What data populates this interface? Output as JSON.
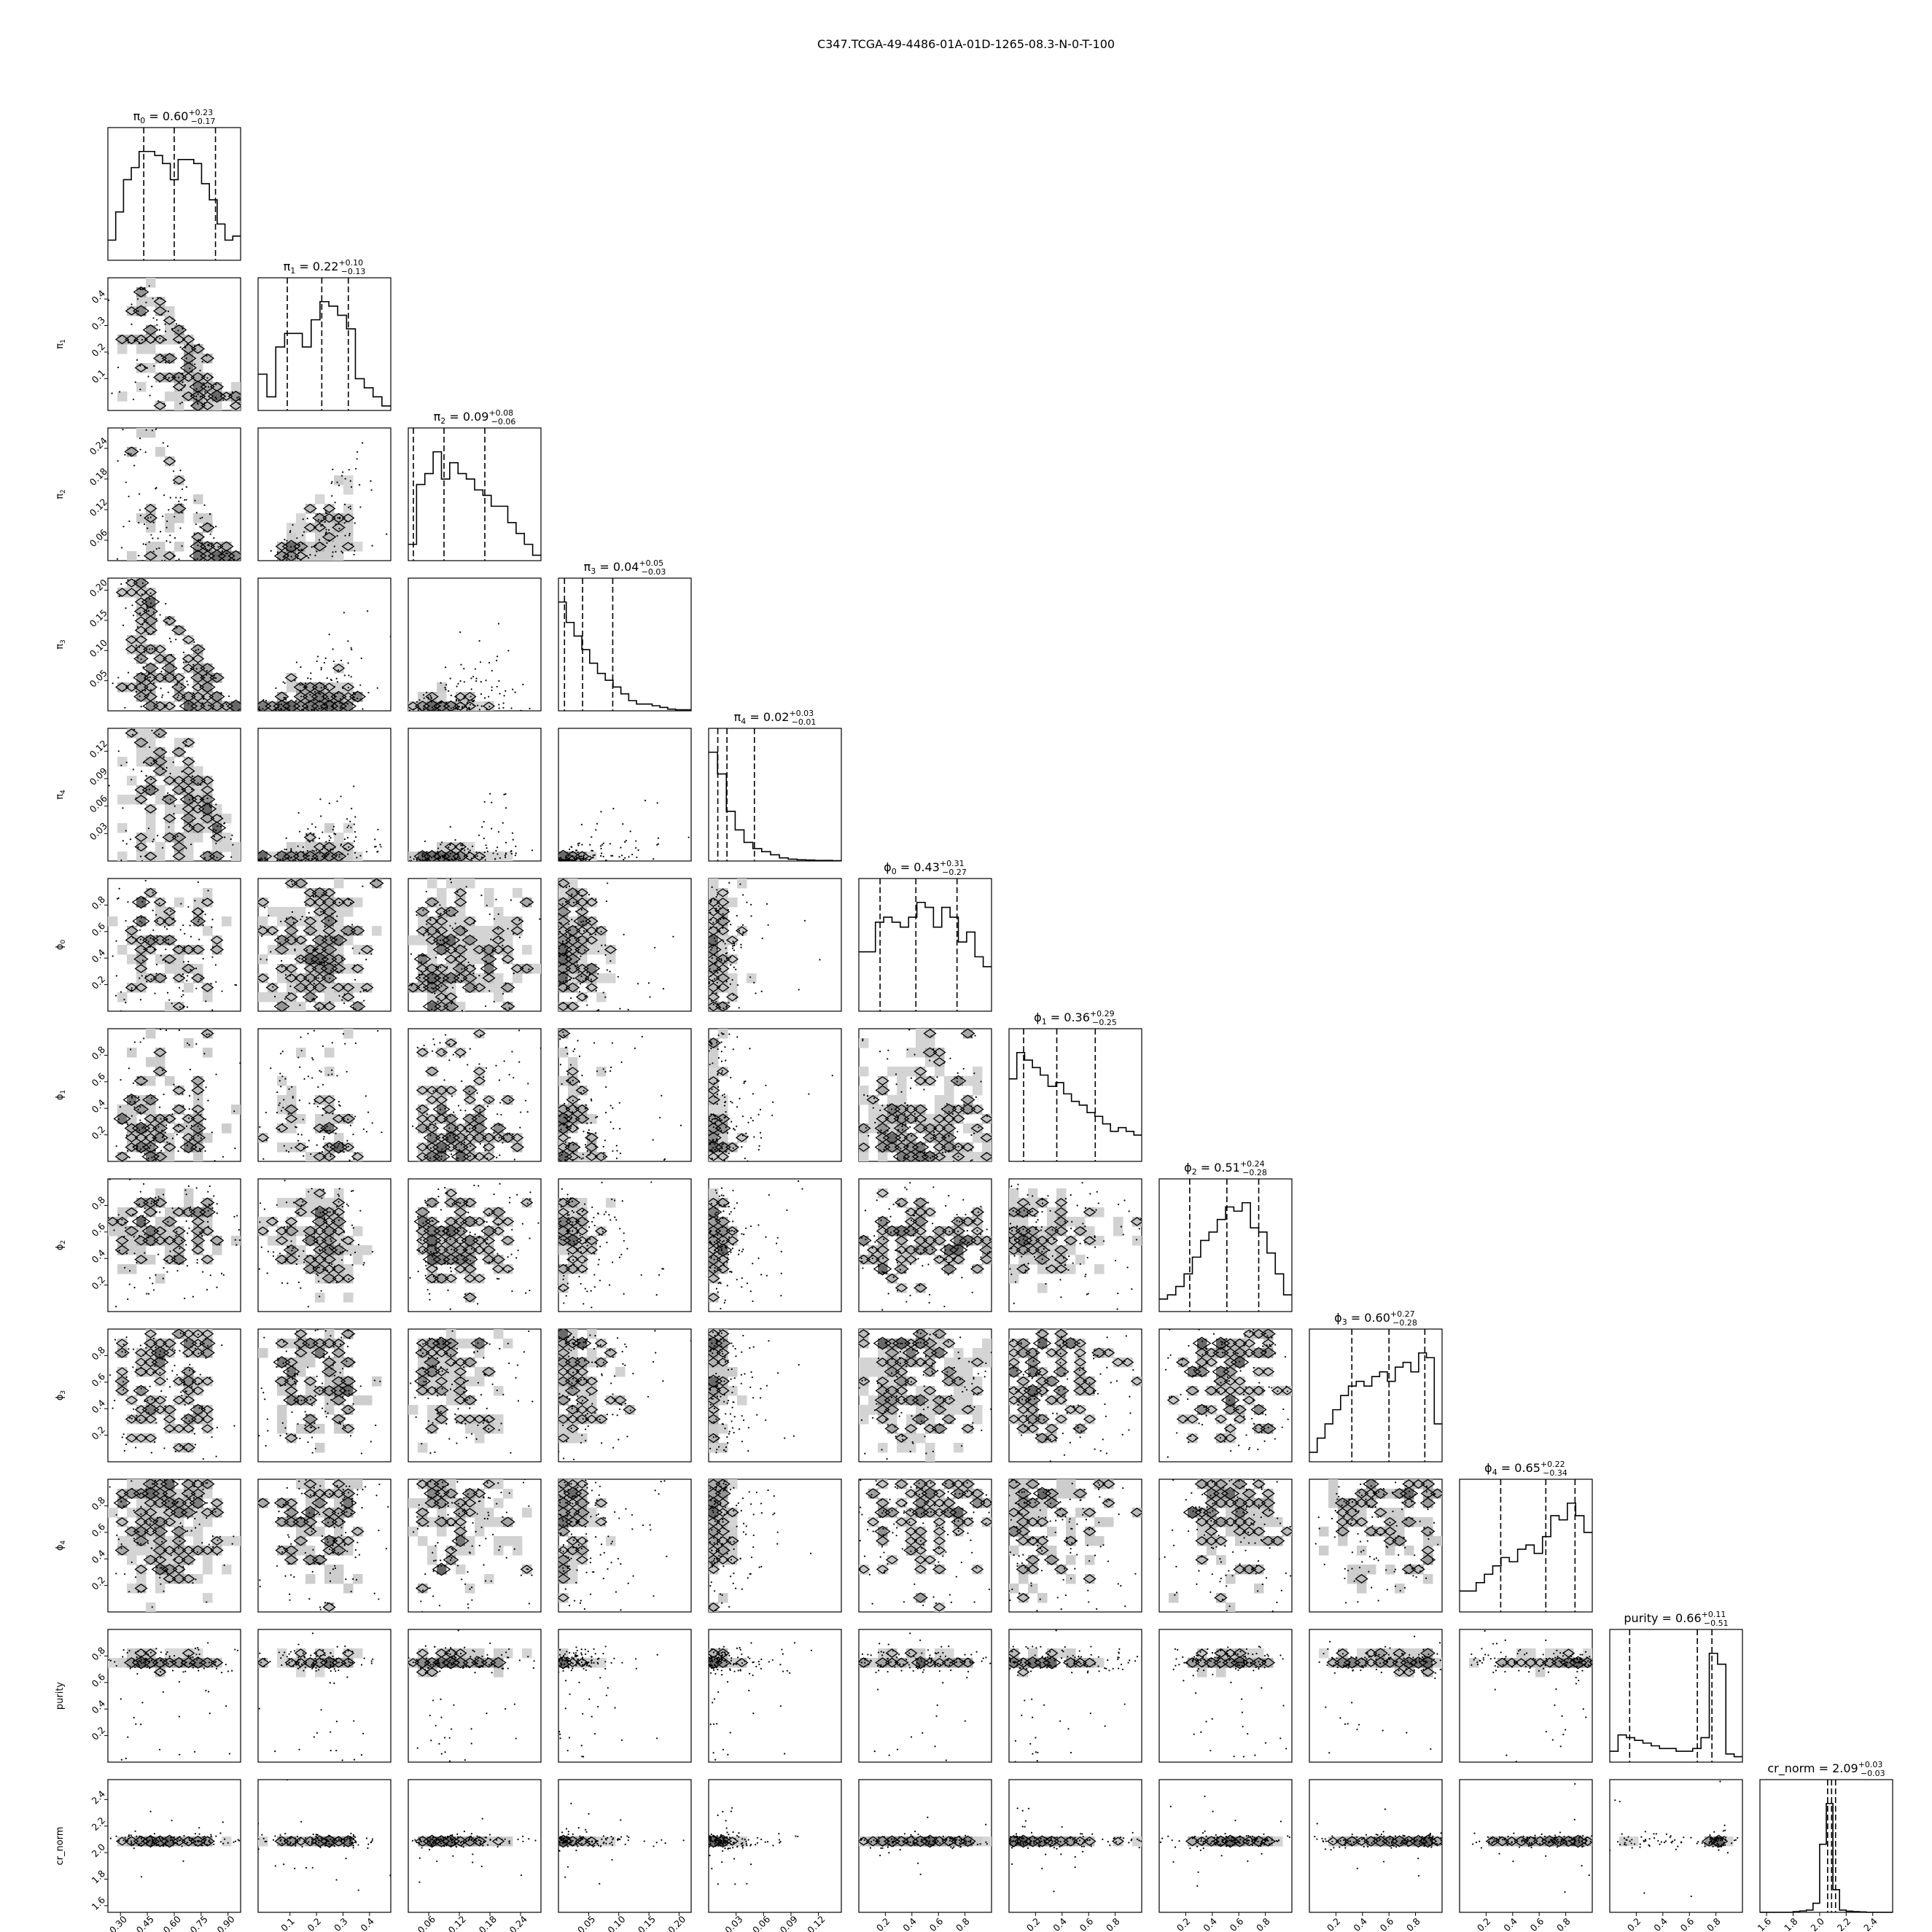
{
  "figure": {
    "title": "C347.TCGA-49-4486-01A-01D-1265-08.3-N-0-T-100"
  },
  "chart_data": {
    "type": "corner",
    "parameters": [
      {
        "key": "pi0",
        "sym": "π",
        "sub": "0",
        "plain": "",
        "median": 0.6,
        "plus": 0.23,
        "minus": 0.17,
        "title_value": "0.60",
        "title_plus": "+0.23",
        "title_minus": "−0.17",
        "range": [
          0.23,
          0.97
        ],
        "ticks": [
          0.3,
          0.45,
          0.6,
          0.75,
          0.9
        ],
        "tick_labels": [
          "0.30",
          "0.45",
          "0.60",
          "0.75",
          "0.90"
        ],
        "hist": [
          5,
          12,
          20,
          23,
          27,
          27,
          26,
          24,
          20,
          25,
          25,
          24,
          19,
          15,
          9,
          5,
          6
        ]
      },
      {
        "key": "pi1",
        "sym": "π",
        "sub": "1",
        "plain": "",
        "median": 0.22,
        "plus": 0.1,
        "minus": 0.13,
        "title_value": "0.22",
        "title_plus": "+0.10",
        "title_minus": "−0.13",
        "range": [
          -0.02,
          0.48
        ],
        "ticks": [
          0.1,
          0.2,
          0.3,
          0.4
        ],
        "tick_labels": [
          "0.1",
          "0.2",
          "0.3",
          "0.4"
        ],
        "hist": [
          8,
          3,
          14,
          17,
          17,
          14,
          20,
          24,
          23,
          21,
          18,
          7,
          5,
          3,
          1
        ]
      },
      {
        "key": "pi2",
        "sym": "π",
        "sub": "2",
        "plain": "",
        "median": 0.09,
        "plus": 0.08,
        "minus": 0.06,
        "title_value": "0.09",
        "title_plus": "+0.08",
        "title_minus": "−0.06",
        "range": [
          0.02,
          0.28
        ],
        "ticks": [
          0.06,
          0.12,
          0.18,
          0.24
        ],
        "tick_labels": [
          "0.06",
          "0.12",
          "0.18",
          "0.24"
        ],
        "hist": [
          3,
          14,
          16,
          20,
          15,
          18,
          16,
          15,
          13,
          12,
          10,
          10,
          7,
          5,
          3,
          1
        ]
      },
      {
        "key": "pi3",
        "sym": "π",
        "sub": "3",
        "plain": "",
        "median": 0.04,
        "plus": 0.05,
        "minus": 0.03,
        "title_value": "0.04",
        "title_plus": "+0.05",
        "title_minus": "−0.03",
        "range": [
          0.0,
          0.22
        ],
        "ticks": [
          0.05,
          0.1,
          0.15,
          0.2
        ],
        "tick_labels": [
          "0.05",
          "0.10",
          "0.15",
          "0.20"
        ],
        "hist": [
          32,
          26,
          22,
          18,
          14,
          11,
          9,
          7,
          5,
          3,
          2,
          2,
          1.5,
          1,
          0.5,
          0.3,
          0.3
        ]
      },
      {
        "key": "pi4",
        "sym": "π",
        "sub": "4",
        "plain": "",
        "median": 0.02,
        "plus": 0.03,
        "minus": 0.01,
        "title_value": "0.02",
        "title_plus": "+0.03",
        "title_minus": "−0.01",
        "range": [
          0.0,
          0.145
        ],
        "ticks": [
          0.03,
          0.06,
          0.09,
          0.12
        ],
        "tick_labels": [
          "0.03",
          "0.06",
          "0.09",
          "0.12"
        ],
        "hist": [
          35,
          28,
          16,
          10,
          6,
          4,
          3,
          2,
          1,
          0.6,
          0.4,
          0.3,
          0.2,
          0.2,
          0.1
        ]
      },
      {
        "key": "phi0",
        "sym": "ϕ",
        "sub": "0",
        "plain": "",
        "median": 0.43,
        "plus": 0.31,
        "minus": 0.27,
        "title_value": "0.43",
        "title_plus": "+0.31",
        "title_minus": "−0.27",
        "range": [
          0.0,
          1.0
        ],
        "ticks": [
          0.2,
          0.4,
          0.6,
          0.8
        ],
        "tick_labels": [
          "0.2",
          "0.4",
          "0.6",
          "0.8"
        ],
        "hist": [
          12,
          12,
          18,
          19,
          18,
          17,
          19,
          22,
          21,
          17,
          21,
          19,
          14,
          16,
          11,
          9
        ]
      },
      {
        "key": "phi1",
        "sym": "ϕ",
        "sub": "1",
        "plain": "",
        "median": 0.36,
        "plus": 0.29,
        "minus": 0.25,
        "title_value": "0.36",
        "title_plus": "+0.29",
        "title_minus": "−0.25",
        "range": [
          0.0,
          1.0
        ],
        "ticks": [
          0.2,
          0.4,
          0.6,
          0.8
        ],
        "tick_labels": [
          "0.2",
          "0.4",
          "0.6",
          "0.8"
        ],
        "hist": [
          22,
          29,
          27,
          25,
          23,
          20,
          21,
          18,
          16,
          15,
          13,
          12,
          10,
          8,
          9,
          8,
          7
        ]
      },
      {
        "key": "phi2",
        "sym": "ϕ",
        "sub": "2",
        "plain": "",
        "median": 0.51,
        "plus": 0.24,
        "minus": 0.28,
        "title_value": "0.51",
        "title_plus": "+0.24",
        "title_minus": "−0.28",
        "range": [
          0.0,
          1.0
        ],
        "ticks": [
          0.2,
          0.4,
          0.6,
          0.8
        ],
        "tick_labels": [
          "0.2",
          "0.4",
          "0.6",
          "0.8"
        ],
        "hist": [
          3,
          4,
          6,
          9,
          13,
          17,
          19,
          22,
          25,
          24,
          26,
          20,
          19,
          14,
          9,
          4
        ]
      },
      {
        "key": "phi3",
        "sym": "ϕ",
        "sub": "3",
        "plain": "",
        "median": 0.6,
        "plus": 0.27,
        "minus": 0.28,
        "title_value": "0.60",
        "title_plus": "+0.27",
        "title_minus": "−0.28",
        "range": [
          0.0,
          1.0
        ],
        "ticks": [
          0.2,
          0.4,
          0.6,
          0.8
        ],
        "tick_labels": [
          "0.2",
          "0.4",
          "0.6",
          "0.8"
        ],
        "hist": [
          2,
          5,
          8,
          11,
          14,
          16,
          17,
          16,
          18,
          19,
          17,
          20,
          21,
          19,
          23,
          22,
          8
        ]
      },
      {
        "key": "phi4",
        "sym": "ϕ",
        "sub": "4",
        "plain": "",
        "median": 0.65,
        "plus": 0.22,
        "minus": 0.34,
        "title_value": "0.65",
        "title_plus": "+0.22",
        "title_minus": "−0.34",
        "range": [
          0.0,
          1.0
        ],
        "ticks": [
          0.2,
          0.4,
          0.6,
          0.8
        ],
        "tick_labels": [
          "0.2",
          "0.4",
          "0.6",
          "0.8"
        ],
        "hist": [
          5,
          5,
          7,
          9,
          11,
          13,
          12,
          15,
          16,
          14,
          18,
          23,
          22,
          26,
          23,
          19
        ]
      },
      {
        "key": "purity",
        "sym": "",
        "sub": "",
        "plain": "purity",
        "median": 0.66,
        "plus": 0.11,
        "minus": 0.51,
        "title_value": "0.66",
        "title_plus": "+0.11",
        "title_minus": "−0.51",
        "range": [
          0.0,
          1.0
        ],
        "ticks": [
          0.2,
          0.4,
          0.6,
          0.8
        ],
        "tick_labels": [
          "0.2",
          "0.4",
          "0.6",
          "0.8"
        ],
        "hist": [
          4,
          10,
          9,
          8,
          7,
          6,
          5,
          5,
          4,
          4,
          5,
          9,
          40,
          36,
          3,
          2
        ]
      },
      {
        "key": "cr_norm",
        "sym": "",
        "sub": "",
        "plain": "cr_norm",
        "median": 2.09,
        "plus": 0.03,
        "minus": 0.03,
        "title_value": "2.09",
        "title_plus": "+0.03",
        "title_minus": "−0.03",
        "range": [
          1.55,
          2.55
        ],
        "ticks": [
          1.6,
          1.8,
          2.0,
          2.2,
          2.4
        ],
        "tick_labels": [
          "1.6",
          "1.8",
          "2.0",
          "2.2",
          "2.4"
        ],
        "hist": [
          0,
          0,
          0,
          0,
          0,
          0.3,
          0.6,
          1,
          4,
          30,
          48,
          10,
          1,
          0.5,
          0.3,
          0.2,
          0,
          0,
          0,
          0
        ]
      }
    ],
    "y_tick_labels_by_row": {
      "pi1": {
        "ticks": [
          0.1,
          0.2,
          0.3,
          0.4
        ],
        "labels": [
          "0.1",
          "0.2",
          "0.3",
          "0.4"
        ]
      },
      "pi2": {
        "ticks": [
          0.06,
          0.12,
          0.18,
          0.24
        ],
        "labels": [
          "0.06",
          "0.12",
          "0.18",
          "0.24"
        ]
      },
      "pi3": {
        "ticks": [
          0.05,
          0.1,
          0.15,
          0.2
        ],
        "labels": [
          "0.05",
          "0.10",
          "0.15",
          "0.20"
        ]
      },
      "pi4": {
        "ticks": [
          0.03,
          0.06,
          0.09,
          0.12
        ],
        "labels": [
          "0.03",
          "0.06",
          "0.09",
          "0.12"
        ]
      },
      "phi0": {
        "ticks": [
          0.2,
          0.4,
          0.6,
          0.8
        ],
        "labels": [
          "0.2",
          "0.4",
          "0.6",
          "0.8"
        ]
      },
      "phi1": {
        "ticks": [
          0.2,
          0.4,
          0.6,
          0.8
        ],
        "labels": [
          "0.2",
          "0.4",
          "0.6",
          "0.8"
        ]
      },
      "phi2": {
        "ticks": [
          0.2,
          0.4,
          0.6,
          0.8
        ],
        "labels": [
          "0.2",
          "0.4",
          "0.6",
          "0.8"
        ]
      },
      "phi3": {
        "ticks": [
          0.2,
          0.4,
          0.6,
          0.8
        ],
        "labels": [
          "0.2",
          "0.4",
          "0.6",
          "0.8"
        ]
      },
      "phi4": {
        "ticks": [
          0.2,
          0.4,
          0.6,
          0.8
        ],
        "labels": [
          "0.2",
          "0.4",
          "0.6",
          "0.8"
        ]
      },
      "purity": {
        "ticks": [
          0.2,
          0.4,
          0.6,
          0.8
        ],
        "labels": [
          "0.2",
          "0.4",
          "0.6",
          "0.8"
        ]
      },
      "cr_norm": {
        "ticks": [
          1.6,
          1.8,
          2.0,
          2.2,
          2.4
        ],
        "labels": [
          "1.6",
          "1.8",
          "2.0",
          "2.2",
          "2.4"
        ]
      }
    },
    "quantile_lines": "16th, 50th, 84th percentiles (dashed)",
    "off_diagonal": "2D density contours with scatter points",
    "colors": {
      "line": "#000000",
      "density_fill": "#6e6e6e",
      "points": "#000000",
      "background": "#ffffff"
    }
  }
}
